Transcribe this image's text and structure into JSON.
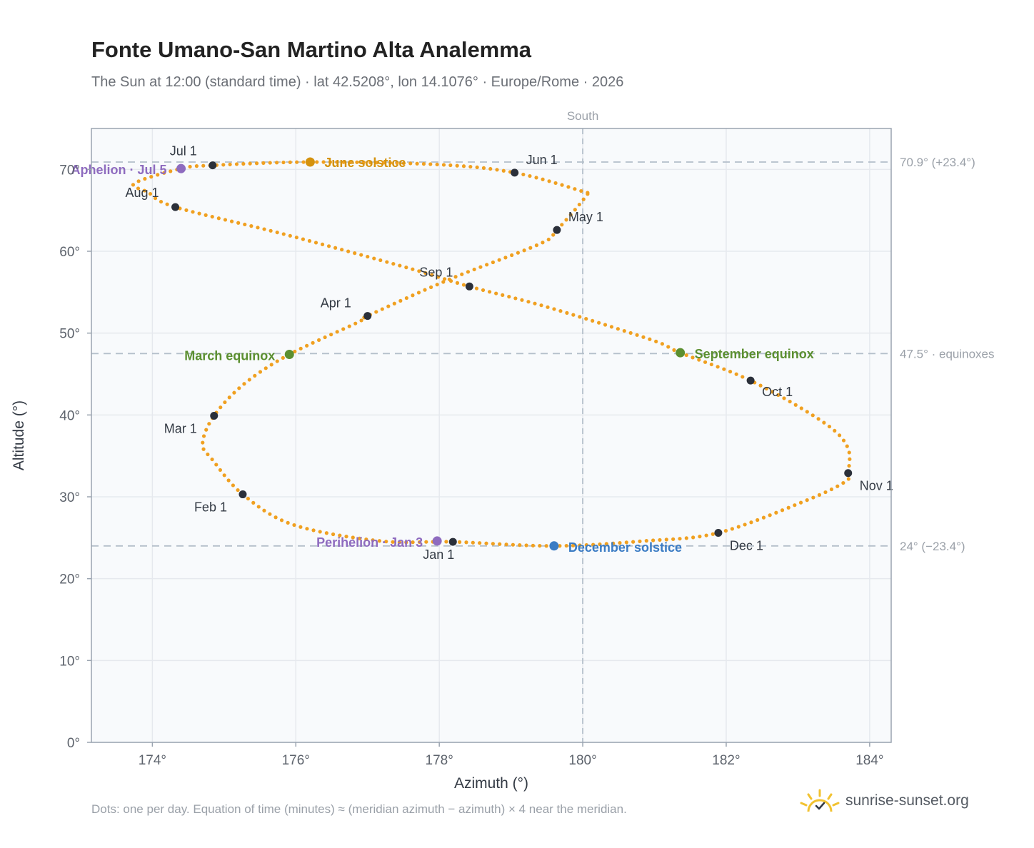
{
  "header": {
    "title": "Fonte Umano-San Martino Alta Analemma",
    "subtitle": "The Sun at 12:00 (standard time) · lat 42.5208°, lon 14.1076° · Europe/Rome · 2026"
  },
  "footer": {
    "note": "Dots: one per day. Equation of time (minutes) ≈ (meridian azimuth − azimuth) × 4 near the meridian.",
    "brand": "sunrise-sunset.org"
  },
  "colors": {
    "curve": "#f0a020",
    "month_dot": "#2b303a",
    "june_solstice": "#d4920e",
    "december_solstice": "#3b7cc4",
    "equinox": "#5b8f30",
    "apsis": "#8e6bbf",
    "reference_line": "#b4bfca",
    "grid": "#e6e9ee",
    "plot_bg": "#f8fafc",
    "frame": "#9aa4b0"
  },
  "chart_data": {
    "type": "scatter",
    "xlabel": "Azimuth (°)",
    "ylabel": "Altitude (°)",
    "xlim": [
      173.15,
      184.3
    ],
    "ylim": [
      0,
      75
    ],
    "x_ticks": [
      174,
      176,
      178,
      180,
      182,
      184
    ],
    "x_tick_labels": [
      "174°",
      "176°",
      "178°",
      "180°",
      "182°",
      "184°"
    ],
    "y_ticks": [
      0,
      10,
      20,
      30,
      40,
      50,
      60,
      70
    ],
    "y_tick_labels": [
      "0°",
      "10°",
      "20°",
      "30°",
      "40°",
      "50°",
      "60°",
      "70°"
    ],
    "grid": true,
    "meridian": {
      "azimuth": 180,
      "label": "South"
    },
    "reference_lines": [
      {
        "altitude": 70.9,
        "label": "70.9° (+23.4°)"
      },
      {
        "altitude": 47.5,
        "label": "47.5° · equinoxes"
      },
      {
        "altitude": 24,
        "label": "24° (−23.4°)"
      }
    ],
    "year": 2026,
    "series": [
      {
        "role": "daily_path",
        "points": [
          [
            178.19,
            24.5
          ],
          [
            177.18,
            24.6
          ],
          [
            175.96,
            26.6
          ],
          [
            175.26,
            30.3
          ],
          [
            174.84,
            34.5
          ],
          [
            174.7,
            36.5
          ],
          [
            174.86,
            39.9
          ],
          [
            175.28,
            43.8
          ],
          [
            175.91,
            47.4
          ],
          [
            176.86,
            51.3
          ],
          [
            177.0,
            52.1
          ],
          [
            178.15,
            56.6
          ],
          [
            179.4,
            60.9
          ],
          [
            179.64,
            62.6
          ],
          [
            180.05,
            66.8
          ],
          [
            180.0,
            67.3
          ],
          [
            179.05,
            69.6
          ],
          [
            177.97,
            70.6
          ],
          [
            176.2,
            70.9
          ],
          [
            174.84,
            70.5
          ],
          [
            174.4,
            70.1
          ],
          [
            173.75,
            68.3
          ],
          [
            173.94,
            67.2
          ],
          [
            174.32,
            65.4
          ],
          [
            175.83,
            62.1
          ],
          [
            177.55,
            58.0
          ],
          [
            178.42,
            55.7
          ],
          [
            179.5,
            53.2
          ],
          [
            180.95,
            49.2
          ],
          [
            181.36,
            47.6
          ],
          [
            182.34,
            44.2
          ],
          [
            183.34,
            39.2
          ],
          [
            183.69,
            36.1
          ],
          [
            183.7,
            32.9
          ],
          [
            183.65,
            31.8
          ],
          [
            183.1,
            29.5
          ],
          [
            181.89,
            25.6
          ],
          [
            180.85,
            24.6
          ],
          [
            179.6,
            24.0
          ]
        ]
      }
    ],
    "month_markers": [
      {
        "label": "Jan 1",
        "azimuth": 178.19,
        "altitude": 24.5
      },
      {
        "label": "Feb 1",
        "azimuth": 175.26,
        "altitude": 30.3
      },
      {
        "label": "Mar 1",
        "azimuth": 174.86,
        "altitude": 39.9
      },
      {
        "label": "Apr 1",
        "azimuth": 177.0,
        "altitude": 52.1
      },
      {
        "label": "May 1",
        "azimuth": 179.64,
        "altitude": 62.6
      },
      {
        "label": "Jun 1",
        "azimuth": 179.05,
        "altitude": 69.6
      },
      {
        "label": "Jul 1",
        "azimuth": 174.84,
        "altitude": 70.5
      },
      {
        "label": "Aug 1",
        "azimuth": 174.32,
        "altitude": 65.4
      },
      {
        "label": "Sep 1",
        "azimuth": 178.42,
        "altitude": 55.7
      },
      {
        "label": "Oct 1",
        "azimuth": 182.34,
        "altitude": 44.2
      },
      {
        "label": "Nov 1",
        "azimuth": 183.7,
        "altitude": 32.9
      },
      {
        "label": "Dec 1",
        "azimuth": 181.89,
        "altitude": 25.6
      }
    ],
    "events": [
      {
        "label": "June solstice",
        "azimuth": 176.2,
        "altitude": 70.9,
        "color_key": "june_solstice"
      },
      {
        "label": "December solstice",
        "azimuth": 179.6,
        "altitude": 24.0,
        "color_key": "december_solstice"
      },
      {
        "label": "March equinox",
        "azimuth": 175.91,
        "altitude": 47.4,
        "color_key": "equinox"
      },
      {
        "label": "September equinox",
        "azimuth": 181.36,
        "altitude": 47.6,
        "color_key": "equinox"
      },
      {
        "label": "Aphelion · Jul 5",
        "azimuth": 174.4,
        "altitude": 70.1,
        "color_key": "apsis"
      },
      {
        "label": "Perihelion · Jan 3",
        "azimuth": 177.97,
        "altitude": 24.6,
        "color_key": "apsis"
      }
    ]
  }
}
